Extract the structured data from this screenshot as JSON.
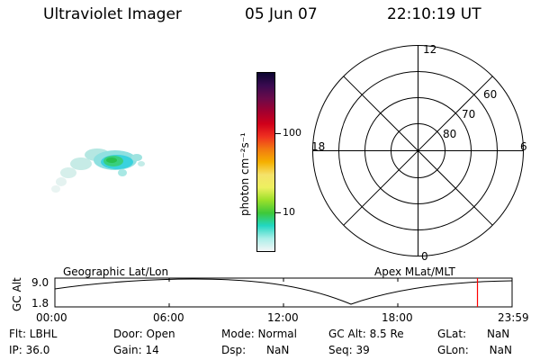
{
  "header": {
    "instrument": "Ultraviolet Imager",
    "date": "05 Jun 07",
    "time": "22:10:19 UT"
  },
  "colorbar": {
    "label": "photon cm⁻²s⁻¹",
    "ticks": [
      "100",
      "10"
    ],
    "colors": [
      "#0b0530",
      "#3a0a50",
      "#6a0a4a",
      "#a00030",
      "#d0001a",
      "#ef3020",
      "#f27a10",
      "#f5b000",
      "#f5e26a",
      "#eef060",
      "#9be02a",
      "#3ec83a",
      "#22d7c2",
      "#aaeee8",
      "#f3f6f6"
    ]
  },
  "polar": {
    "mlt_labels": [
      "12",
      "18",
      "6",
      "0"
    ],
    "lat_labels": [
      "60",
      "70",
      "80"
    ],
    "line_color": "#000000"
  },
  "timeline": {
    "title_left": "Geographic Lat/Lon",
    "title_right": "Apex  MLat/MLT",
    "ylabel": "GC Alt",
    "y_ticks": [
      "9.0",
      "1.8"
    ],
    "x_ticks": [
      "00:00",
      "06:00",
      "12:00",
      "18:00",
      "23:59"
    ],
    "marker_time": "22:10",
    "marker_color": "#ff0000"
  },
  "footer": {
    "flt": "Flt: LBHL",
    "ip": "IP: 36.0",
    "door": "Door: Open",
    "gain": "Gain: 14",
    "mode": "Mode: Normal",
    "dsp": "Dsp:      NaN",
    "gcalt": "GC Alt: 8.5 Re",
    "seq": "Seq: 39",
    "glat": "GLat:      NaN",
    "glon": "GLon:      NaN"
  }
}
